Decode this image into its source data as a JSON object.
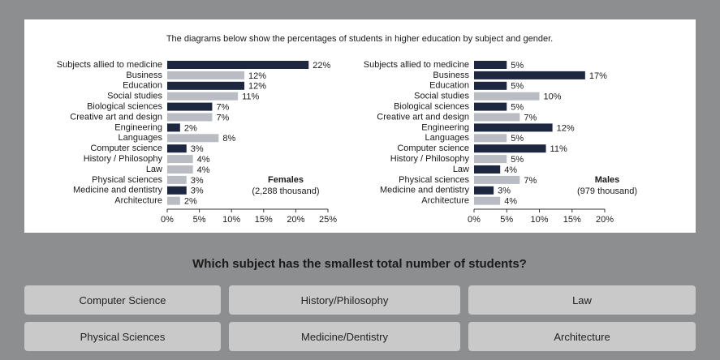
{
  "title": "The diagrams below show the percentages of students in higher education by subject and gender.",
  "chart_data": [
    {
      "type": "bar",
      "orientation": "horizontal",
      "categories": [
        "Subjects allied to medicine",
        "Business",
        "Education",
        "Social studies",
        "Biological sciences",
        "Creative art and design",
        "Engineering",
        "Languages",
        "Computer science",
        "History / Philosophy",
        "Law",
        "Physical sciences",
        "Medicine and dentistry",
        "Architecture"
      ],
      "values": [
        22,
        12,
        12,
        11,
        7,
        7,
        2,
        8,
        3,
        4,
        4,
        3,
        3,
        2
      ],
      "value_labels": [
        "22%",
        "12%",
        "12%",
        "11%",
        "7%",
        "7%",
        "2%",
        "8%",
        "3%",
        "4%",
        "4%",
        "3%",
        "3%",
        "2%"
      ],
      "colors": [
        "#1e2740",
        "#b9bdc3",
        "#1e2740",
        "#b9bdc3",
        "#1e2740",
        "#b9bdc3",
        "#1e2740",
        "#b9bdc3",
        "#1e2740",
        "#b9bdc3",
        "#b9bdc3",
        "#b9bdc3",
        "#1e2740",
        "#b9bdc3"
      ],
      "xlim": [
        0,
        25
      ],
      "xticks": [
        {
          "value": 0,
          "label": "0%"
        },
        {
          "value": 5,
          "label": "5%"
        },
        {
          "value": 10,
          "label": "10%"
        },
        {
          "value": 15,
          "label": "15%"
        },
        {
          "value": 20,
          "label": "20%"
        },
        {
          "value": 25,
          "label": "25%"
        }
      ],
      "annotations": [
        "Females",
        "(2,288 thousand)"
      ]
    },
    {
      "type": "bar",
      "orientation": "horizontal",
      "categories": [
        "Subjects allied to medicine",
        "Business",
        "Education",
        "Social studies",
        "Biological sciences",
        "Creative art and design",
        "Engineering",
        "Languages",
        "Computer science",
        "History / Philosophy",
        "Law",
        "Physical sciences",
        "Medicine and dentistry",
        "Architecture"
      ],
      "values": [
        5,
        17,
        5,
        10,
        5,
        7,
        12,
        5,
        11,
        5,
        4,
        7,
        3,
        4
      ],
      "value_labels": [
        "5%",
        "17%",
        "5%",
        "10%",
        "5%",
        "7%",
        "12%",
        "5%",
        "11%",
        "5%",
        "4%",
        "7%",
        "3%",
        "4%"
      ],
      "colors": [
        "#1e2740",
        "#1e2740",
        "#1e2740",
        "#b9bdc3",
        "#1e2740",
        "#b9bdc3",
        "#1e2740",
        "#b9bdc3",
        "#1e2740",
        "#b9bdc3",
        "#1e2740",
        "#b9bdc3",
        "#1e2740",
        "#b9bdc3"
      ],
      "xlim": [
        0,
        20
      ],
      "xticks": [
        {
          "value": 0,
          "label": "0%"
        },
        {
          "value": 5,
          "label": "5%"
        },
        {
          "value": 10,
          "label": "10%"
        },
        {
          "value": 15,
          "label": "15%"
        },
        {
          "value": 20,
          "label": "20%"
        }
      ],
      "annotations": [
        "Males",
        "(979 thousand)"
      ]
    }
  ],
  "question": "Which subject has the smallest total number of students?",
  "options": [
    "Computer Science",
    "History/Philosophy",
    "Law",
    "Physical Sciences",
    "Medicine/Dentistry",
    "Architecture"
  ]
}
